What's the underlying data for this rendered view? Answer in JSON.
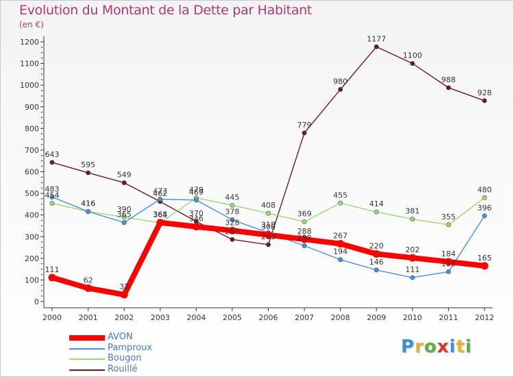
{
  "title": "Evolution du Montant de la Dette par Habitant",
  "subtitle": "(en €)",
  "logo_text": "Proxiti",
  "chart_data": {
    "type": "line",
    "title": "Evolution du Montant de la Dette par Habitant",
    "subtitle": "(en €)",
    "categories": [
      "2000",
      "2001",
      "2002",
      "2003",
      "2004",
      "2005",
      "2006",
      "2007",
      "2008",
      "2009",
      "2010",
      "2011",
      "2012"
    ],
    "ylim": [
      0,
      1200
    ],
    "yticks": [
      0,
      100,
      200,
      300,
      400,
      500,
      600,
      700,
      800,
      900,
      1000,
      1100,
      1200
    ],
    "grid": false,
    "legend_position": "bottom-left",
    "series": [
      {
        "name": "Rouillé",
        "color": "#6b1a1e",
        "values": [
          643,
          595,
          549,
          462,
          370,
          287,
          263,
          779,
          980,
          1177,
          1100,
          988,
          928
        ]
      },
      {
        "name": "Bougon",
        "color": "#99d97a",
        "values": [
          454,
          416,
          390,
          364,
          479,
          445,
          408,
          369,
          455,
          414,
          381,
          355,
          480
        ]
      },
      {
        "name": "Pamproux",
        "color": "#4a8fd8",
        "values": [
          483,
          416,
          365,
          473,
          469,
          378,
          318,
          258,
          194,
          146,
          111,
          138,
          396
        ]
      },
      {
        "name": "AVON",
        "color": "#ff0000",
        "values": [
          111,
          62,
          32,
          365,
          346,
          328,
          308,
          288,
          267,
          220,
          202,
          184,
          165
        ]
      }
    ]
  }
}
